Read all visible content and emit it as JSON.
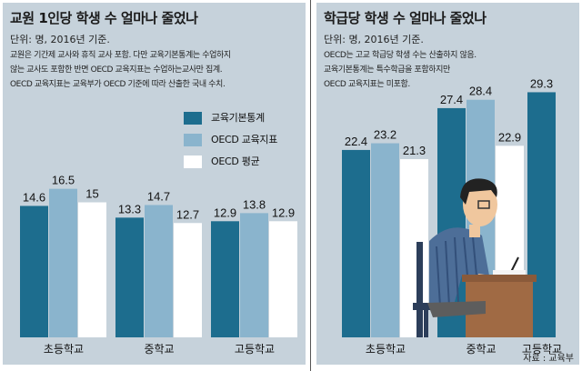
{
  "colors": {
    "primary": "#1d6d8e",
    "secondary": "#8ab4cd",
    "tertiary": "#ffffff",
    "panel": "#c6d2db"
  },
  "left": {
    "title": "교원 1인당 학생 수 얼마나 줄었나",
    "unit": "단위: 명, 2016년 기준.",
    "notes": [
      "교원은 기간제 교사와 휴직 교사 포함. 다만 교육기본통계는 수업하지",
      "않는 교사도 포함한 반면 OECD 교육지표는 수업하는교사만 집계.",
      "OECD 교육지표는 교육부가 OECD 기준에 따라 산출한 국내 수치."
    ],
    "legend": [
      "교육기본통계",
      "OECD 교육지표",
      "OECD 평균"
    ]
  },
  "right": {
    "title": "학급당 학생 수 얼마나 줄었나",
    "unit": "단위: 명, 2016년 기준.",
    "notes": [
      "OECD는 고교 학급당 학생 수는 산출하지 않음.",
      "교육기본통계는 특수학급을 포함하지만",
      "OECD 교육지표는 미포함."
    ],
    "source": "자료 : 교육부"
  },
  "chart_data": [
    {
      "type": "bar",
      "title": "교원 1인당 학생 수 얼마나 줄었나",
      "categories": [
        "초등학교",
        "중학교",
        "고등학교"
      ],
      "series": [
        {
          "name": "교육기본통계",
          "values": [
            14.6,
            13.3,
            12.9
          ]
        },
        {
          "name": "OECD 교육지표",
          "values": [
            16.5,
            14.7,
            13.8
          ]
        },
        {
          "name": "OECD 평균",
          "values": [
            15,
            12.7,
            12.9
          ]
        }
      ],
      "ylim": [
        0,
        22
      ],
      "grid": false
    },
    {
      "type": "bar",
      "title": "학급당 학생 수 얼마나 줄었나",
      "categories": [
        "초등학교",
        "중학교",
        "고등학교"
      ],
      "series": [
        {
          "name": "교육기본통계",
          "values": [
            22.4,
            27.4,
            29.3
          ]
        },
        {
          "name": "OECD 교육지표",
          "values": [
            23.2,
            28.4,
            null
          ]
        },
        {
          "name": "OECD 평균",
          "values": [
            21.3,
            22.9,
            null
          ]
        }
      ],
      "ylim": [
        0,
        34
      ],
      "grid": false
    }
  ]
}
